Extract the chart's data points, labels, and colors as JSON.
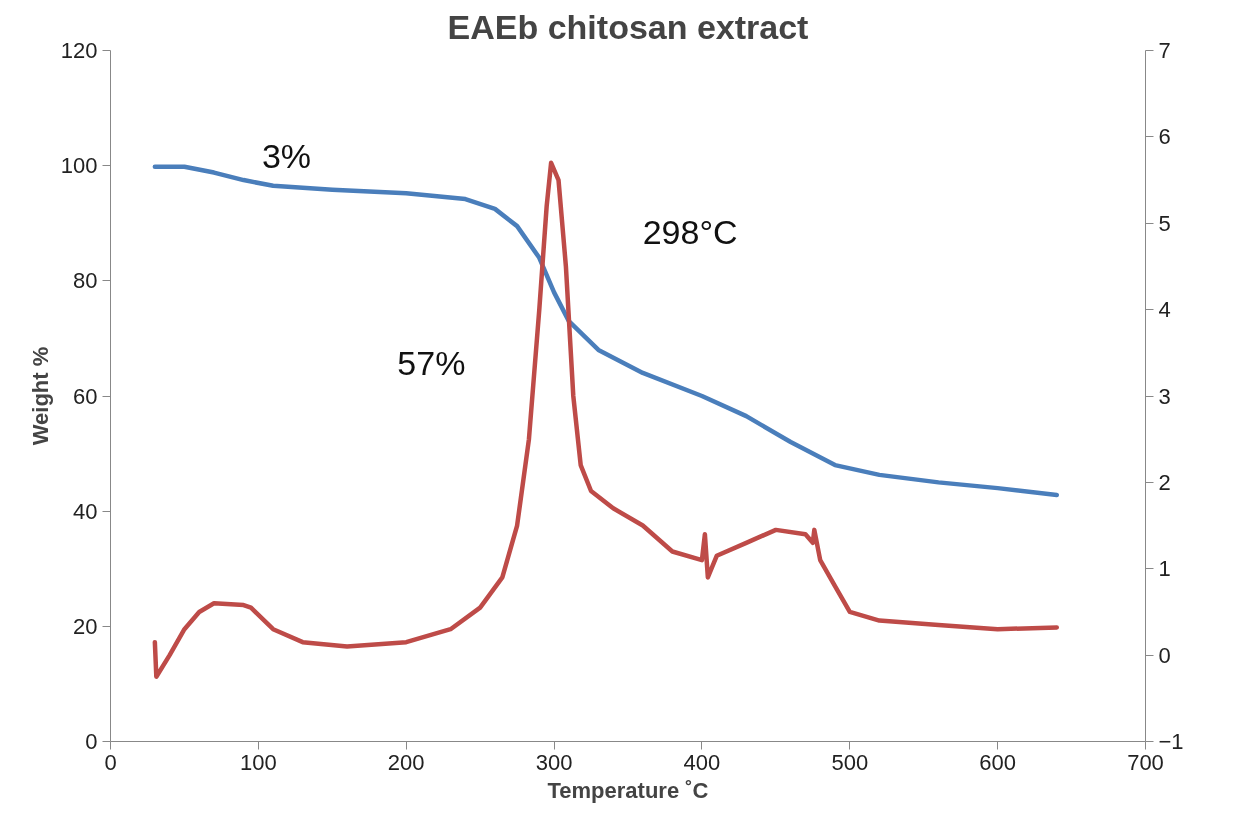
{
  "chart_data": {
    "type": "line",
    "title": "EAEb chitosan extract",
    "xlabel": "Temperature ˚C",
    "ylabel": "Weight %",
    "xlim": [
      0,
      700
    ],
    "xticks": [
      0,
      100,
      200,
      300,
      400,
      500,
      600,
      700
    ],
    "ylim": [
      0,
      120
    ],
    "yticks": [
      0,
      20,
      40,
      60,
      80,
      100,
      120
    ],
    "y2lim": [
      -1,
      7
    ],
    "y2ticks": [
      -1,
      0,
      1,
      2,
      3,
      4,
      5,
      6,
      7
    ],
    "grid": false,
    "marker": "none",
    "line_style": "solid",
    "series": [
      {
        "color": "#4a7ebb",
        "x": [
          30,
          50,
          70,
          90,
          110,
          150,
          200,
          240,
          260,
          275,
          290,
          300,
          310,
          330,
          360,
          400,
          430,
          460,
          490,
          520,
          560,
          600,
          640
        ],
        "values": [
          99.8,
          99.8,
          98.8,
          97.5,
          96.5,
          95.8,
          95.2,
          94.2,
          92.5,
          89.5,
          84,
          78,
          73,
          68,
          64,
          60,
          56.5,
          52,
          48,
          46.3,
          45,
          44,
          42.8
        ]
      },
      {
        "color": "#be4b48",
        "axis": "y2",
        "x": [
          30,
          31,
          40,
          50,
          60,
          70,
          90,
          95,
          110,
          130,
          160,
          200,
          230,
          250,
          265,
          275,
          283,
          290,
          295,
          298,
          303,
          308,
          313,
          318,
          325,
          340,
          360,
          380,
          400,
          402,
          404,
          410,
          430,
          450,
          470,
          475,
          476,
          480,
          490,
          500,
          520,
          560,
          600,
          640
        ],
        "values": [
          0.15,
          -0.25,
          0.0,
          0.3,
          0.5,
          0.6,
          0.58,
          0.55,
          0.3,
          0.15,
          0.1,
          0.15,
          0.3,
          0.55,
          0.9,
          1.5,
          2.5,
          4.0,
          5.2,
          5.7,
          5.5,
          4.5,
          3.0,
          2.2,
          1.9,
          1.7,
          1.5,
          1.2,
          1.1,
          1.4,
          0.9,
          1.15,
          1.3,
          1.45,
          1.4,
          1.3,
          1.45,
          1.1,
          0.8,
          0.5,
          0.4,
          0.35,
          0.3,
          0.32
        ]
      }
    ],
    "annotations": [
      "3%",
      "57%",
      "298°C"
    ]
  }
}
